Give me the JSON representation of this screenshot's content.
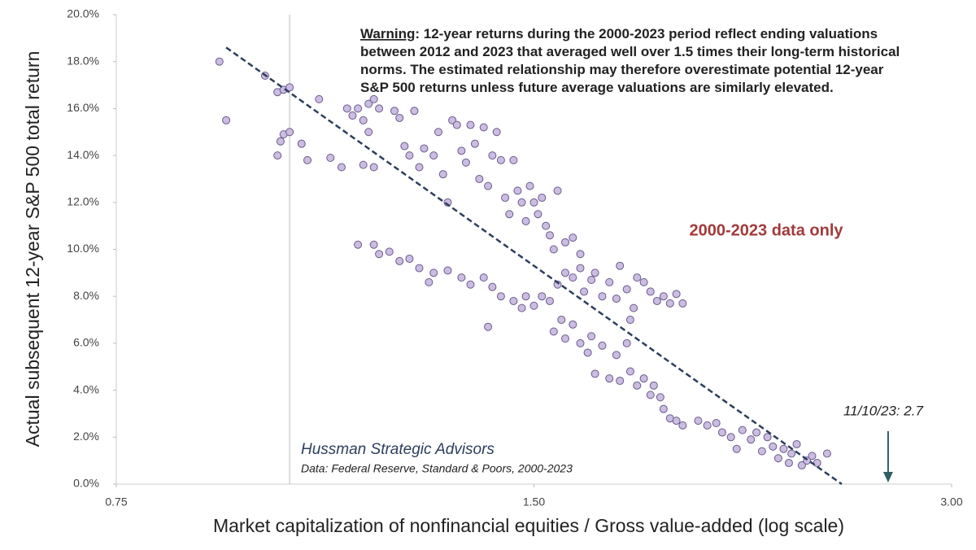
{
  "chart_data": {
    "type": "scatter",
    "x_label": "Market capitalization of nonfinancial equities / Gross value-added (log scale)",
    "y_label": "Actual subsequent  12-year S&P 500 total return",
    "xscale": "log",
    "xlim": [
      0.75,
      3.0
    ],
    "ylim": [
      0,
      20
    ],
    "xticks": [
      {
        "value": 0.75,
        "label": "0.75"
      },
      {
        "value": 1.5,
        "label": "1.50"
      },
      {
        "value": 3.0,
        "label": "3.00"
      }
    ],
    "yticks": [
      {
        "value": 0,
        "label": "0.0%"
      },
      {
        "value": 2,
        "label": "2.0%"
      },
      {
        "value": 4,
        "label": "4.0%"
      },
      {
        "value": 6,
        "label": "6.0%"
      },
      {
        "value": 8,
        "label": "8.0%"
      },
      {
        "value": 10,
        "label": "10.0%"
      },
      {
        "value": 12,
        "label": "12.0%"
      },
      {
        "value": 14,
        "label": "14.0%"
      },
      {
        "value": 16,
        "label": "16.0%"
      },
      {
        "value": 18,
        "label": "18.0%"
      },
      {
        "value": 20,
        "label": "20.0%"
      }
    ],
    "grid": false,
    "vline": 1.0,
    "color": "#cbbde2",
    "edge_color": "#6a5a8c",
    "x": [
      0.89,
      0.9,
      0.96,
      0.98,
      0.99,
      1.0,
      0.99,
      1.0,
      0.985,
      0.98,
      1.02,
      1.03,
      1.05,
      1.07,
      1.09,
      1.1,
      1.11,
      1.12,
      1.13,
      1.14,
      1.15,
      1.16,
      1.14,
      1.15,
      1.13,
      1.19,
      1.2,
      1.21,
      1.22,
      1.23,
      1.24,
      1.25,
      1.27,
      1.28,
      1.29,
      1.3,
      1.31,
      1.32,
      1.33,
      1.34,
      1.35,
      1.36,
      1.37,
      1.38,
      1.39,
      1.4,
      1.41,
      1.42,
      1.43,
      1.44,
      1.45,
      1.46,
      1.47,
      1.48,
      1.49,
      1.5,
      1.51,
      1.52,
      1.53,
      1.54,
      1.56,
      1.55,
      1.58,
      1.6,
      1.62,
      1.12,
      1.15,
      1.16,
      1.18,
      1.2,
      1.22,
      1.24,
      1.26,
      1.27,
      1.3,
      1.33,
      1.35,
      1.38,
      1.4,
      1.42,
      1.45,
      1.47,
      1.48,
      1.5,
      1.52,
      1.54,
      1.39,
      1.56,
      1.58,
      1.6,
      1.62,
      1.63,
      1.65,
      1.66,
      1.68,
      1.7,
      1.72,
      1.73,
      1.75,
      1.77,
      1.78,
      1.8,
      1.82,
      1.84,
      1.86,
      1.88,
      1.9,
      1.92,
      1.76,
      1.55,
      1.57,
      1.58,
      1.6,
      1.62,
      1.64,
      1.65,
      1.66,
      1.68,
      1.7,
      1.72,
      1.73,
      1.75,
      1.76,
      1.78,
      1.8,
      1.82,
      1.83,
      1.85,
      1.86,
      1.88,
      1.9,
      1.92,
      1.97,
      2.0,
      2.03,
      2.05,
      2.08,
      2.1,
      2.12,
      2.15,
      2.17,
      2.19,
      2.21,
      2.23,
      2.25,
      2.27,
      2.29,
      2.3,
      2.32,
      2.34,
      2.36,
      2.38,
      2.4,
      2.44
    ],
    "values": [
      18.0,
      15.5,
      17.4,
      16.7,
      16.8,
      16.9,
      14.9,
      15.0,
      14.6,
      14.0,
      14.5,
      13.8,
      16.4,
      13.9,
      13.5,
      16.0,
      15.7,
      16.0,
      15.5,
      16.2,
      16.4,
      16.0,
      15.0,
      13.5,
      13.6,
      15.9,
      15.6,
      14.4,
      14.0,
      15.9,
      13.5,
      14.3,
      14.0,
      15.0,
      13.2,
      12.0,
      15.5,
      15.3,
      14.2,
      13.7,
      15.3,
      14.5,
      13.0,
      15.2,
      12.7,
      14.0,
      15.0,
      13.8,
      12.2,
      11.5,
      13.8,
      12.5,
      12.0,
      11.2,
      12.7,
      12.0,
      11.5,
      12.2,
      11.0,
      10.6,
      12.5,
      10.0,
      10.3,
      10.5,
      9.8,
      10.2,
      10.2,
      9.8,
      9.9,
      9.5,
      9.6,
      9.2,
      8.6,
      9.0,
      9.1,
      8.8,
      8.5,
      8.8,
      8.4,
      8.0,
      7.8,
      7.5,
      8.0,
      7.6,
      8.0,
      7.8,
      6.7,
      8.5,
      9.0,
      8.8,
      9.2,
      8.2,
      8.7,
      9.0,
      8.0,
      8.6,
      7.9,
      9.3,
      8.3,
      7.5,
      8.8,
      8.6,
      8.2,
      7.8,
      8.0,
      7.7,
      8.1,
      7.7,
      7.0,
      6.5,
      7.0,
      6.2,
      6.8,
      6.0,
      5.6,
      6.3,
      4.7,
      5.9,
      4.5,
      5.5,
      4.4,
      6.0,
      4.8,
      4.2,
      4.5,
      3.8,
      4.2,
      3.7,
      3.2,
      2.8,
      2.7,
      2.5,
      2.7,
      2.5,
      2.6,
      2.2,
      2.0,
      1.5,
      2.3,
      1.9,
      2.2,
      1.4,
      2.0,
      1.6,
      1.1,
      1.5,
      0.9,
      1.3,
      1.7,
      0.8,
      1.0,
      1.2,
      0.9,
      1.3
    ],
    "trendline": {
      "color": "#2c3e5c",
      "x": [
        0.9,
        2.5
      ],
      "values": [
        18.6,
        0
      ]
    },
    "marker": {
      "x": 2.7,
      "label": "11/10/23: 2.7",
      "color": "#2f5f63"
    },
    "highlight": {
      "text": "2000-2023 data only",
      "color": "#a23a3a"
    },
    "note_label": "Warning",
    "note_lines": [
      ": 12-year returns during the 2000-2023 period reflect ending valuations",
      "between 2012 and 2023 that averaged well over 1.5 times their long-term historical",
      "norms. The estimated relationship may therefore overestimate potential 12-year",
      "S&P 500 returns unless future average valuations are similarly elevated."
    ],
    "source_name": "Hussman Strategic Advisors",
    "source_detail": "Data: Federal Reserve, Standard & Poors, 2000-2023"
  }
}
